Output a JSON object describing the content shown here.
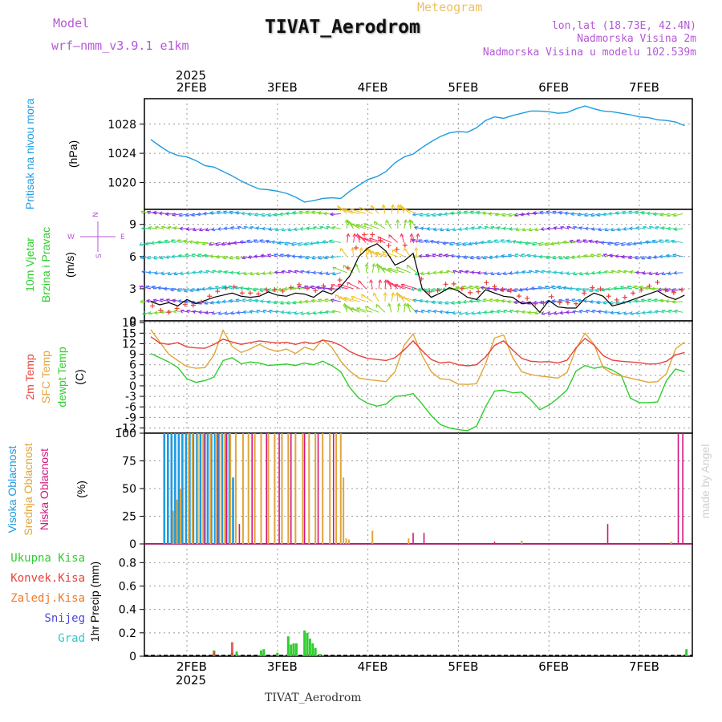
{
  "header": {
    "model_label": "Model",
    "model_name": "wrf—nmm_v3.9.1  e1km",
    "title": "TIVAT_Aerodrom",
    "subtitle": "Meteogram",
    "coords": "lon,lat (18.73E, 42.4N)",
    "elevation": "Nadmorska Visina 2m",
    "model_elevation": "Nadmorska Visina u modelu 102.539m",
    "footer": "TIVAT_Aerodrom",
    "watermark": "made by Angel",
    "year": "2025"
  },
  "colors": {
    "pressure": "#1e9be0",
    "temp2m": "#e8423c",
    "sfc_temp": "#e0a53a",
    "dewpt": "#2fce2f",
    "cloud_high": "#1e9be0",
    "cloud_mid": "#e0a53a",
    "cloud_low": "#d4147f",
    "precip_total": "#2fce2f",
    "precip_conv": "#e8423c",
    "precip_frozen": "#f07a2a",
    "snow": "#4a4adc",
    "hail": "#33c7c7",
    "wind_speed": "#000000",
    "wind_gust": "#e8423c",
    "model_text": "#b558d8",
    "subtitle": "#f0c060"
  },
  "chart_data": [
    {
      "type": "line",
      "title": "Pritisak na nivou mora",
      "ylabel": "(hPa)",
      "yticks": [
        1020,
        1024,
        1028
      ],
      "ylim": [
        1016.3,
        1031.5
      ],
      "xlabels": [
        "2FEB",
        "3FEB",
        "4FEB",
        "5FEB",
        "6FEB",
        "7FEB"
      ],
      "x_days": [
        1.6,
        1.7,
        1.8,
        1.9,
        2.0,
        2.1,
        2.2,
        2.3,
        2.4,
        2.5,
        2.6,
        2.7,
        2.8,
        2.9,
        3.0,
        3.1,
        3.2,
        3.3,
        3.4,
        3.5,
        3.6,
        3.7,
        3.8,
        3.9,
        4.0,
        4.1,
        4.2,
        4.3,
        4.4,
        4.5,
        4.6,
        4.7,
        4.8,
        4.9,
        5.0,
        5.1,
        5.2,
        5.3,
        5.4,
        5.5,
        5.6,
        5.7,
        5.8,
        5.9,
        6.0,
        6.1,
        6.2,
        6.3,
        6.4,
        6.5,
        6.6,
        6.7,
        6.8,
        6.9,
        7.0,
        7.1,
        7.2,
        7.3,
        7.4,
        7.5
      ],
      "series": [
        {
          "values": [
            1025.9,
            1025.0,
            1024.2,
            1023.7,
            1023.5,
            1023.0,
            1022.3,
            1022.1,
            1021.5,
            1020.9,
            1020.2,
            1019.6,
            1019.1,
            1019.0,
            1018.8,
            1018.5,
            1018.0,
            1017.3,
            1017.5,
            1017.8,
            1017.9,
            1017.8,
            1018.8,
            1019.6,
            1020.4,
            1020.8,
            1021.5,
            1022.7,
            1023.5,
            1023.9,
            1024.8,
            1025.6,
            1026.3,
            1026.8,
            1027.0,
            1026.9,
            1027.5,
            1028.5,
            1029.0,
            1028.8,
            1029.2,
            1029.5,
            1029.8,
            1029.8,
            1029.7,
            1029.5,
            1029.6,
            1030.1,
            1030.5,
            1030.1,
            1029.8,
            1029.7,
            1029.5,
            1029.3,
            1029.0,
            1028.9,
            1028.6,
            1028.5,
            1028.3,
            1027.8
          ]
        }
      ]
    },
    {
      "type": "line",
      "title": "10m Vjetar Brzina i Pravac",
      "ylabel": "(m/s)",
      "yticks": [
        0,
        3,
        6,
        9
      ],
      "ylim": [
        0,
        10.4
      ],
      "compass": [
        "N",
        "S",
        "W",
        "E"
      ],
      "x_days": [
        1.6,
        1.7,
        1.8,
        1.9,
        2.0,
        2.1,
        2.2,
        2.3,
        2.4,
        2.5,
        2.6,
        2.7,
        2.8,
        2.9,
        3.0,
        3.1,
        3.2,
        3.3,
        3.4,
        3.5,
        3.6,
        3.7,
        3.8,
        3.9,
        4.0,
        4.1,
        4.2,
        4.3,
        4.4,
        4.5,
        4.6,
        4.7,
        4.8,
        4.9,
        5.0,
        5.1,
        5.2,
        5.3,
        5.4,
        5.5,
        5.6,
        5.7,
        5.8,
        5.9,
        6.0,
        6.1,
        6.2,
        6.3,
        6.4,
        6.5,
        6.6,
        6.7,
        6.8,
        6.9,
        7.0,
        7.1,
        7.2,
        7.3,
        7.4,
        7.5
      ],
      "series": [
        {
          "values": [
            1.8,
            1.5,
            1.7,
            1.4,
            2.0,
            1.6,
            1.9,
            2.2,
            2.4,
            2.6,
            2.3,
            2.2,
            2.3,
            2.7,
            2.4,
            2.3,
            2.6,
            2.5,
            2.2,
            2.8,
            2.5,
            3.2,
            4.2,
            6.0,
            6.8,
            7.2,
            6.5,
            5.2,
            5.6,
            6.3,
            3.0,
            2.2,
            2.6,
            3.1,
            2.8,
            2.2,
            2.0,
            2.9,
            2.6,
            2.3,
            2.2,
            1.6,
            1.7,
            0.8,
            1.9,
            1.3,
            1.2,
            1.2,
            2.1,
            2.6,
            2.3,
            1.4,
            1.6,
            1.9,
            2.2,
            2.5,
            2.8,
            2.3,
            2.0,
            2.4
          ]
        },
        {
          "values": [
            1.5,
            1.0,
            0.8,
            1.2,
            1.6,
            1.4,
            2.0,
            2.6,
            3.0,
            3.3,
            2.6,
            2.6,
            2.5,
            3.0,
            2.9,
            2.7,
            3.5,
            3.2,
            2.7,
            3.3,
            3.0,
            3.9,
            5.2,
            7.5,
            8.4,
            7.7,
            7.2,
            6.6,
            7.0,
            7.6,
            3.5,
            2.5,
            3.0,
            3.7,
            3.2,
            2.7,
            2.5,
            3.6,
            3.2,
            2.9,
            2.8,
            2.1,
            2.1,
            1.1,
            2.5,
            1.7,
            1.7,
            1.6,
            2.7,
            3.2,
            2.9,
            1.9,
            2.0,
            2.5,
            2.8,
            3.2,
            3.6,
            2.8,
            2.6,
            3.0
          ]
        }
      ],
      "arrow_rows_speed": [
        0.8,
        1.8,
        3.0,
        4.5,
        6.0,
        7.3,
        8.6,
        10.0
      ]
    },
    {
      "type": "line",
      "title": "2m Temp / SFC Temp / dewpt Temp",
      "ylabel": "(C)",
      "yticks": [
        -12,
        -9,
        -6,
        -3,
        0,
        3,
        6,
        9,
        12,
        15,
        18
      ],
      "ylim": [
        -13.5,
        18.5
      ],
      "x_days": [
        1.6,
        1.7,
        1.8,
        1.9,
        2.0,
        2.1,
        2.2,
        2.3,
        2.4,
        2.5,
        2.6,
        2.7,
        2.8,
        2.9,
        3.0,
        3.1,
        3.2,
        3.3,
        3.4,
        3.5,
        3.6,
        3.7,
        3.8,
        3.9,
        4.0,
        4.1,
        4.2,
        4.3,
        4.4,
        4.5,
        4.6,
        4.7,
        4.8,
        4.9,
        5.0,
        5.1,
        5.2,
        5.3,
        5.4,
        5.5,
        5.6,
        5.7,
        5.8,
        5.9,
        6.0,
        6.1,
        6.2,
        6.3,
        6.4,
        6.5,
        6.6,
        6.7,
        6.8,
        6.9,
        7.0,
        7.1,
        7.2,
        7.3,
        7.4,
        7.5
      ],
      "series": [
        {
          "values": [
            14.0,
            12.2,
            11.8,
            12.3,
            11.1,
            10.8,
            10.7,
            11.8,
            13.3,
            12.5,
            11.8,
            12.3,
            12.8,
            12.5,
            12.2,
            12.4,
            11.8,
            12.5,
            12.0,
            13.0,
            12.6,
            11.5,
            9.8,
            8.6,
            7.8,
            7.5,
            7.2,
            8.0,
            10.2,
            12.8,
            10.0,
            7.5,
            6.5,
            6.8,
            6.0,
            5.7,
            6.0,
            8.2,
            11.5,
            12.8,
            10.2,
            7.8,
            7.0,
            6.8,
            6.9,
            6.5,
            7.3,
            10.8,
            13.5,
            11.6,
            8.6,
            7.3,
            7.0,
            6.8,
            6.6,
            6.2,
            6.3,
            7.0,
            8.8,
            9.5
          ]
        },
        {
          "values": [
            16.0,
            12.5,
            9.0,
            7.2,
            5.5,
            5.0,
            5.2,
            8.8,
            15.8,
            11.2,
            9.5,
            10.5,
            11.8,
            10.5,
            9.8,
            10.5,
            9.2,
            11.0,
            10.2,
            13.2,
            11.0,
            7.0,
            4.2,
            2.2,
            1.8,
            1.5,
            1.2,
            4.0,
            11.5,
            14.8,
            8.6,
            4.0,
            2.0,
            1.8,
            0.5,
            0.4,
            0.6,
            6.2,
            13.6,
            14.5,
            8.0,
            4.0,
            3.2,
            2.8,
            2.5,
            2.2,
            3.8,
            10.5,
            15.0,
            11.8,
            5.2,
            3.5,
            2.8,
            2.2,
            1.6,
            1.0,
            1.2,
            3.5,
            10.5,
            12.5
          ]
        },
        {
          "values": [
            9.2,
            8.0,
            6.8,
            5.2,
            2.0,
            1.0,
            1.5,
            2.5,
            7.2,
            8.0,
            6.3,
            6.8,
            6.5,
            5.8,
            6.0,
            6.2,
            5.8,
            6.5,
            6.0,
            7.0,
            5.8,
            4.0,
            -0.5,
            -3.5,
            -5.0,
            -5.8,
            -5.2,
            -3.0,
            -2.8,
            -2.2,
            -5.2,
            -8.5,
            -11.0,
            -12.0,
            -12.5,
            -12.8,
            -11.5,
            -6.0,
            -1.5,
            -1.2,
            -2.0,
            -1.8,
            -4.0,
            -6.8,
            -5.5,
            -3.5,
            -1.2,
            4.2,
            5.8,
            5.0,
            5.5,
            4.5,
            3.0,
            -3.5,
            -4.8,
            -4.8,
            -4.6,
            1.5,
            4.8,
            4.0
          ]
        }
      ]
    },
    {
      "type": "bar",
      "title": "Visoka / Srednja / Niska Oblacnost",
      "ylabel": "(%)",
      "yticks": [
        0,
        25,
        50,
        75,
        100
      ],
      "ylim": [
        0,
        100
      ],
      "series": [
        {
          "name": "Visoka Oblacnost",
          "x": [
            1.75,
            1.79,
            1.83,
            1.87,
            1.91,
            1.95,
            1.99,
            2.03,
            2.07,
            2.11,
            2.15,
            2.19,
            2.23,
            2.27,
            2.31,
            2.35,
            2.39,
            2.43,
            2.47,
            2.51
          ],
          "values": [
            100,
            100,
            100,
            100,
            100,
            100,
            100,
            100,
            100,
            100,
            100,
            100,
            100,
            100,
            100,
            100,
            100,
            100,
            100,
            60
          ]
        },
        {
          "name": "Srednja Oblacnost",
          "x": [
            1.85,
            1.89,
            1.93,
            2.02,
            2.06,
            2.12,
            2.18,
            2.26,
            2.32,
            2.38,
            2.42,
            2.48,
            2.54,
            2.62,
            2.68,
            2.75,
            2.82,
            2.9,
            2.97,
            3.05,
            3.12,
            3.2,
            3.28,
            3.35,
            3.42,
            3.5,
            3.58,
            3.65,
            3.7,
            3.73,
            3.76,
            3.79,
            4.05,
            4.45,
            5.7,
            7.35
          ],
          "values": [
            30,
            40,
            50,
            100,
            100,
            100,
            100,
            100,
            100,
            100,
            100,
            100,
            100,
            100,
            100,
            100,
            100,
            100,
            100,
            100,
            100,
            100,
            100,
            100,
            100,
            100,
            100,
            100,
            100,
            60,
            5,
            4,
            12,
            5,
            3,
            2
          ]
        },
        {
          "name": "Niska Oblacnost",
          "x": [
            2.2,
            2.34,
            2.44,
            2.58,
            2.72,
            2.88,
            3.02,
            3.15,
            3.3,
            3.45,
            3.62,
            4.5,
            4.62,
            5.4,
            6.65,
            7.43,
            7.48
          ],
          "values": [
            100,
            100,
            100,
            18,
            100,
            100,
            100,
            100,
            100,
            100,
            100,
            10,
            10,
            2,
            18,
            100,
            100
          ]
        }
      ]
    },
    {
      "type": "bar",
      "title": "1hr Precip",
      "ylabel": "1hr Precip (mm)",
      "yticks": [
        0,
        0.2,
        0.4,
        0.6,
        0.8
      ],
      "ylim": [
        0,
        0.96
      ],
      "legend": [
        "Ukupna Kisa",
        "Konvek.Kisa",
        "Zaledj.Kisa",
        "Snijeg",
        "Grad"
      ],
      "series": [
        {
          "name": "Ukupna Kisa",
          "x": [
            2.3,
            2.5,
            2.55,
            2.82,
            2.85,
            3.0,
            3.12,
            3.15,
            3.18,
            3.21,
            3.3,
            3.33,
            3.36,
            3.39,
            3.42,
            3.47,
            7.52
          ],
          "values": [
            0.05,
            0.03,
            0.04,
            0.05,
            0.06,
            0.03,
            0.17,
            0.1,
            0.11,
            0.11,
            0.22,
            0.2,
            0.15,
            0.11,
            0.07,
            0.02,
            0.06
          ]
        },
        {
          "name": "Konvek.Kisa",
          "x": [
            1.68,
            2.3,
            2.5,
            7.4
          ],
          "values": [
            0.01,
            0.04,
            0.12,
            0.01
          ]
        }
      ]
    }
  ]
}
